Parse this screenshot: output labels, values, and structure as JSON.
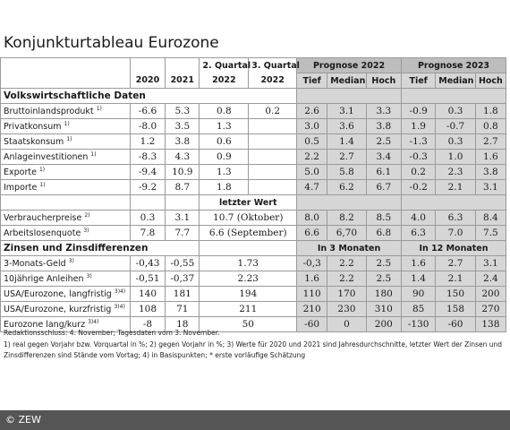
{
  "title": "Konjunkturtableau Eurozone",
  "header": {
    "quartal_q2": "2. Quartal",
    "quartal_q3": "3. Quartal",
    "prognose_2022": "Prognose 2022",
    "prognose_2023": "Prognose 2023",
    "y2020": "2020",
    "y2021": "2021",
    "y2022a": "2022",
    "y2022b": "2022",
    "tief": "Tief",
    "median": "Median",
    "hoch": "Hoch"
  },
  "sections": {
    "volkswirtschaft": "Volkswirtschaftliche Daten",
    "letzter_wert": "letzter Wert",
    "zinsen": "Zinsen und Zinsdifferenzen",
    "in3": "In 3 Monaten",
    "in12": "In 12 Monaten"
  },
  "rows_a": [
    {
      "label": "Bruttoinlandsprodukt",
      "sup": "1)",
      "v": [
        "-6.6",
        "5.3",
        "0.8",
        "0.2",
        "2.6",
        "3.1",
        "3.3",
        "-0.9",
        "0.3",
        "1.8"
      ]
    },
    {
      "label": "Privatkonsum",
      "sup": "1)",
      "v": [
        "-8.0",
        "3.5",
        "1.3",
        "",
        "3.0",
        "3.6",
        "3.8",
        "1.9",
        "-0.7",
        "0.8"
      ]
    },
    {
      "label": "Staatskonsum",
      "sup": "1)",
      "v": [
        "1.2",
        "3.8",
        "0.6",
        "",
        "0.5",
        "1.4",
        "2.5",
        "-1.3",
        "0.3",
        "2.7"
      ]
    },
    {
      "label": "Anlageinvestitionen",
      "sup": "1)",
      "v": [
        "-8.3",
        "4.3",
        "0.9",
        "",
        "2.2",
        "2.7",
        "3.4",
        "-0.3",
        "1.0",
        "1.6"
      ]
    },
    {
      "label": "Exporte",
      "sup": "1)",
      "v": [
        "-9.4",
        "10.9",
        "1.3",
        "",
        "5.0",
        "5.8",
        "6.1",
        "0.2",
        "2.3",
        "3.8"
      ]
    },
    {
      "label": "Importe",
      "sup": "1)",
      "v": [
        "-9.2",
        "8.7",
        "1.8",
        "",
        "4.7",
        "6.2",
        "6.7",
        "-0.2",
        "2.1",
        "3.1"
      ]
    }
  ],
  "rows_b": [
    {
      "label": "Verbraucherpreise",
      "sup": "2)",
      "v": [
        "0.3",
        "3.1",
        "10.7 (Oktober)",
        "8.0",
        "8.2",
        "8.5",
        "4.0",
        "6.3",
        "8.4"
      ]
    },
    {
      "label": "Arbeitslosenquote",
      "sup": "3)",
      "v": [
        "7.8",
        "7.7",
        "6.6 (September)",
        "6.6",
        "6,70",
        "6.8",
        "6.3",
        "7.0",
        "7.5"
      ]
    }
  ],
  "rows_c": [
    {
      "label": "3-Monats-Geld",
      "sup": "3)",
      "v": [
        "-0,43",
        "-0,55",
        "1.73",
        "-0,3",
        "2.2",
        "2.5",
        "1.6",
        "2.7",
        "3.1"
      ]
    },
    {
      "label": "10jährige Anleihen",
      "sup": "3)",
      "v": [
        "-0,51",
        "-0,37",
        "2.23",
        "1.6",
        "2.2",
        "2.5",
        "1.4",
        "2.1",
        "2.4"
      ]
    },
    {
      "label": "USA/Eurozone, langfristig",
      "sup": "3)4)",
      "v": [
        "140",
        "181",
        "194",
        "110",
        "170",
        "180",
        "90",
        "150",
        "200"
      ]
    },
    {
      "label": "USA/Eurozone, kurzfristig",
      "sup": "3)4)",
      "v": [
        "108",
        "71",
        "211",
        "210",
        "230",
        "310",
        "85",
        "158",
        "270"
      ]
    },
    {
      "label": "Eurozone lang/kurz",
      "sup": "3)4)",
      "v": [
        "-8",
        "18",
        "50",
        "-60",
        "0",
        "200",
        "-130",
        "-60",
        "138"
      ]
    }
  ],
  "notes": [
    "Redaktionsschluss: 4. November; Tagesdaten vom 3. November.",
    "1) real gegen Vorjahr bzw. Vorquartal in %; 2) gegen Vorjahr in %; 3) Werte für 2020 und 2021 sind Jahresdurchschnitte, letzter Wert der Zinsen und",
    "Zinsdifferenzen sind Stände vom Vortag; 4) in Basispunkten; * erste vorläufige Schätzung"
  ],
  "footer": "© ZEW"
}
